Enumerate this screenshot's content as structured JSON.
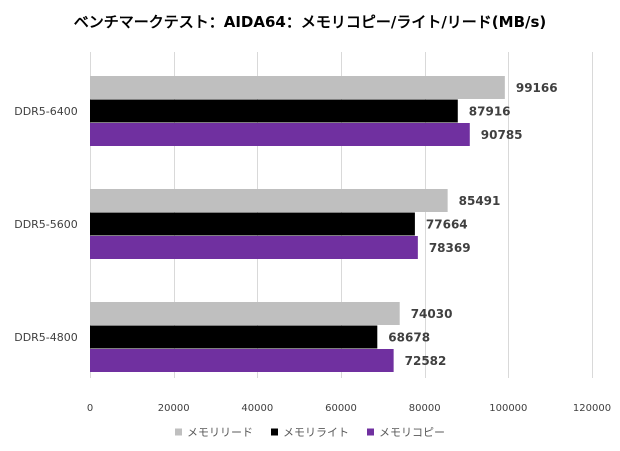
{
  "chart_data": {
    "type": "bar",
    "orientation": "horizontal",
    "title": "ベンチマークテスト：AIDA64：メモリコピー/ライト/リード(MB/s)",
    "categories": [
      "DDR5-6400",
      "DDR5-5600",
      "DDR5-4800"
    ],
    "series": [
      {
        "name": "メモリリード",
        "color": "#bfbfbf",
        "values": [
          99166,
          85491,
          74030
        ]
      },
      {
        "name": "メモリライト",
        "color": "#000000",
        "values": [
          87916,
          77664,
          68678
        ]
      },
      {
        "name": "メモリコピー",
        "color": "#7030a0",
        "values": [
          90785,
          78369,
          72582
        ]
      }
    ],
    "xlim": [
      0,
      120000
    ],
    "xticks": [
      "0",
      "20000",
      "40000",
      "60000",
      "80000",
      "100000",
      "120000"
    ],
    "xtick_values": [
      0,
      20000,
      40000,
      60000,
      80000,
      100000,
      120000
    ],
    "xlabel": "",
    "ylabel": "",
    "grid": true,
    "legend_position": "bottom-center"
  }
}
